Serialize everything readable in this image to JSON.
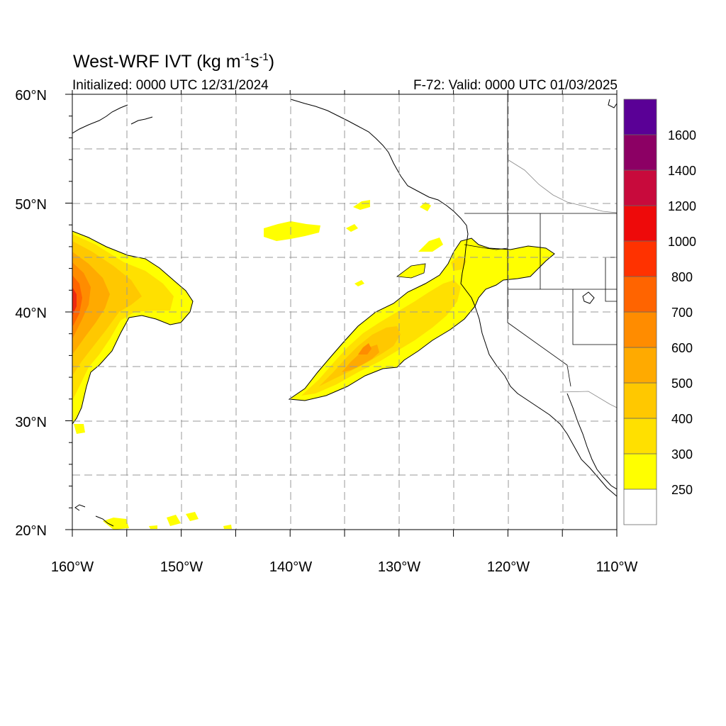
{
  "header": {
    "model": "West-WRF IVT",
    "units_open": "(kg m",
    "units_exp1": "-1",
    "units_mid": "s",
    "units_exp2": "-1",
    "units_close": ")",
    "initialized": "Initialized: 0000 UTC 12/31/2024",
    "valid": "F-72: Valid: 0000 UTC 01/03/2025"
  },
  "map": {
    "lon_range": [
      -160,
      -110
    ],
    "lat_range": [
      20,
      60
    ],
    "lat_labels": [
      "20°N",
      "30°N",
      "40°N",
      "50°N",
      "60°N"
    ],
    "lon_labels": [
      "160°W",
      "150°W",
      "140°W",
      "130°W",
      "120°W",
      "110°W"
    ]
  },
  "colorbar": {
    "labels": [
      "250",
      "300",
      "400",
      "500",
      "600",
      "700",
      "800",
      "1000",
      "1200",
      "1400",
      "1600"
    ],
    "colors": [
      "#ffffff",
      "#ffff00",
      "#ffe000",
      "#ffc800",
      "#ffaa00",
      "#ff8c00",
      "#ff6400",
      "#ff3200",
      "#ee0a0a",
      "#c80a3c",
      "#8c0064",
      "#5a0096"
    ]
  }
}
